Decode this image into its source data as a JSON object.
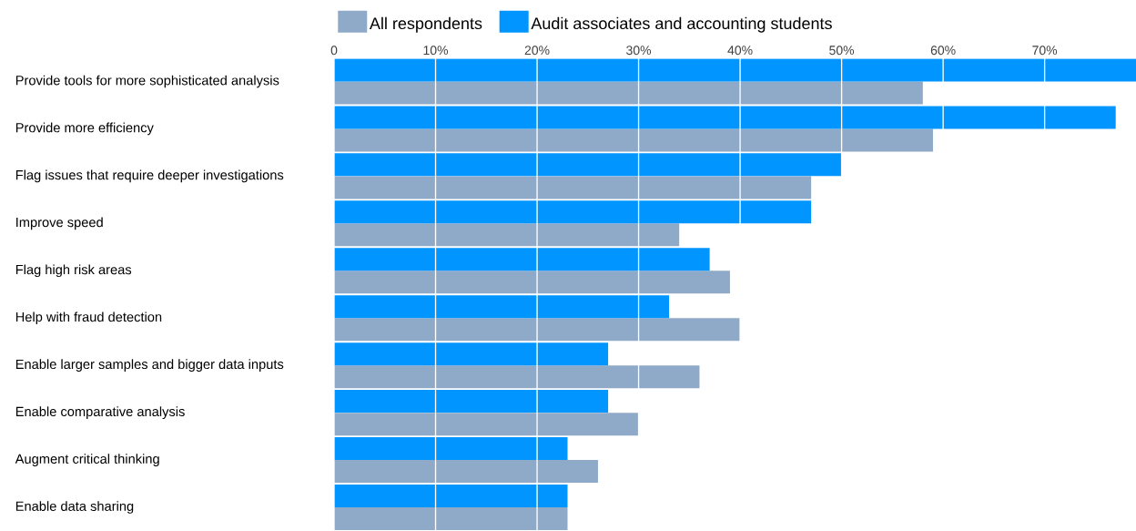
{
  "chart_data": {
    "type": "bar",
    "orientation": "horizontal",
    "categories": [
      "Provide tools for more sophisticated analysis",
      "Provide more efficiency",
      "Flag issues that require deeper investigations",
      "Improve speed",
      "Flag high risk areas",
      "Help with fraud detection",
      "Enable larger samples and bigger data inputs",
      "Enable comparative analysis",
      "Augment critical thinking",
      "Enable data sharing"
    ],
    "series": [
      {
        "name": "All respondents",
        "color": "#8eaac8",
        "values": [
          58,
          59,
          47,
          34,
          39,
          40,
          36,
          30,
          26,
          23
        ]
      },
      {
        "name": "Audit associates and accounting students",
        "color": "#0095ff",
        "values": [
          79,
          77,
          50,
          47,
          37,
          33,
          27,
          27,
          23,
          23
        ]
      }
    ],
    "xlim": [
      0,
      79
    ],
    "xticks": [
      {
        "value": 0,
        "label": "0"
      },
      {
        "value": 10,
        "label": "10%"
      },
      {
        "value": 20,
        "label": "20%"
      },
      {
        "value": 30,
        "label": "30%"
      },
      {
        "value": 40,
        "label": "40%"
      },
      {
        "value": 50,
        "label": "50%"
      },
      {
        "value": 60,
        "label": "60%"
      },
      {
        "value": 70,
        "label": "70%"
      }
    ],
    "grid": "x",
    "legend": "top left"
  }
}
